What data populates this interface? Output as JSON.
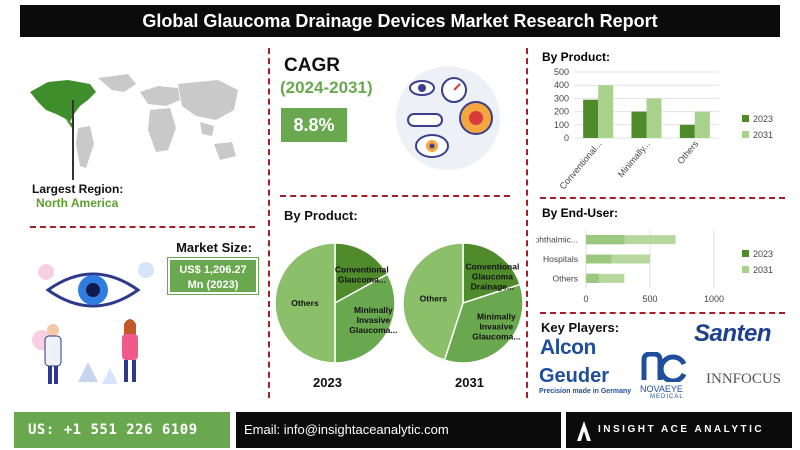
{
  "header": {
    "title": "Global Glaucoma Drainage Devices Market Research Report"
  },
  "region": {
    "label": "Largest Region:",
    "value": "North America"
  },
  "cagr": {
    "title": "CAGR",
    "period": "(2024-2031)",
    "value": "8.8%"
  },
  "market_size": {
    "label": "Market Size:",
    "line1": "US$ 1,206.27",
    "line2": "Mn (2023)"
  },
  "pies": {
    "title": "By Product:",
    "year_2023": "2023",
    "year_2031": "2031"
  },
  "key_players": {
    "title": "Key Players:",
    "logos": [
      "Alcon",
      "Santen",
      "Geuder",
      "Precision made in Germany",
      "NOVAEYE",
      "MEDICAL",
      "INNFOCUS"
    ]
  },
  "footer": {
    "phone": "US: +1 551 226 6109",
    "email": "Email: info@insightaceanalytic.com",
    "brand": "INSIGHT ACE ANALYTIC"
  },
  "colors": {
    "accent_green": "#6aa84f",
    "dark_green": "#4f8a2b",
    "light_green": "#a9d18e",
    "divider": "#a3202a"
  },
  "chart_data": [
    {
      "type": "bar",
      "title": "By Product:",
      "categories": [
        "Conventional...",
        "Minimally...",
        "Others"
      ],
      "series": [
        {
          "name": "2023",
          "values": [
            290,
            200,
            100
          ],
          "color": "#4f8a2b"
        },
        {
          "name": "2031",
          "values": [
            400,
            300,
            200
          ],
          "color": "#a9d18e"
        }
      ],
      "ylim": [
        0,
        500
      ],
      "yticks": [
        0,
        100,
        200,
        300,
        400,
        500
      ],
      "legend": "right"
    },
    {
      "type": "bar",
      "orientation": "horizontal",
      "title": "By End-User:",
      "categories": [
        "Ophthalmic...",
        "Hospitals",
        "Others"
      ],
      "series": [
        {
          "name": "2023",
          "values": [
            300,
            200,
            100
          ],
          "color": "#4f8a2b"
        },
        {
          "name": "2031",
          "values": [
            700,
            500,
            300
          ],
          "color": "#a9d18e"
        }
      ],
      "xlim": [
        0,
        1000
      ],
      "xticks": [
        0,
        500,
        1000
      ],
      "legend": "right"
    },
    {
      "type": "pie",
      "label": "2023",
      "slices": [
        {
          "label": "Conventional Glaucoma...",
          "value": 17,
          "color": "#4f8a2b"
        },
        {
          "label": "Minimally Invasive Glaucoma...",
          "value": 33,
          "color": "#6aa84f"
        },
        {
          "label": "Others",
          "value": 50,
          "color": "#8cbf6a"
        }
      ]
    },
    {
      "type": "pie",
      "label": "2031",
      "slices": [
        {
          "label": "Conventional Glaucoma Drainage...",
          "value": 20,
          "color": "#4f8a2b"
        },
        {
          "label": "Minimally Invasive Glaucoma...",
          "value": 35,
          "color": "#6aa84f"
        },
        {
          "label": "Others",
          "value": 45,
          "color": "#8cbf6a"
        }
      ]
    }
  ]
}
